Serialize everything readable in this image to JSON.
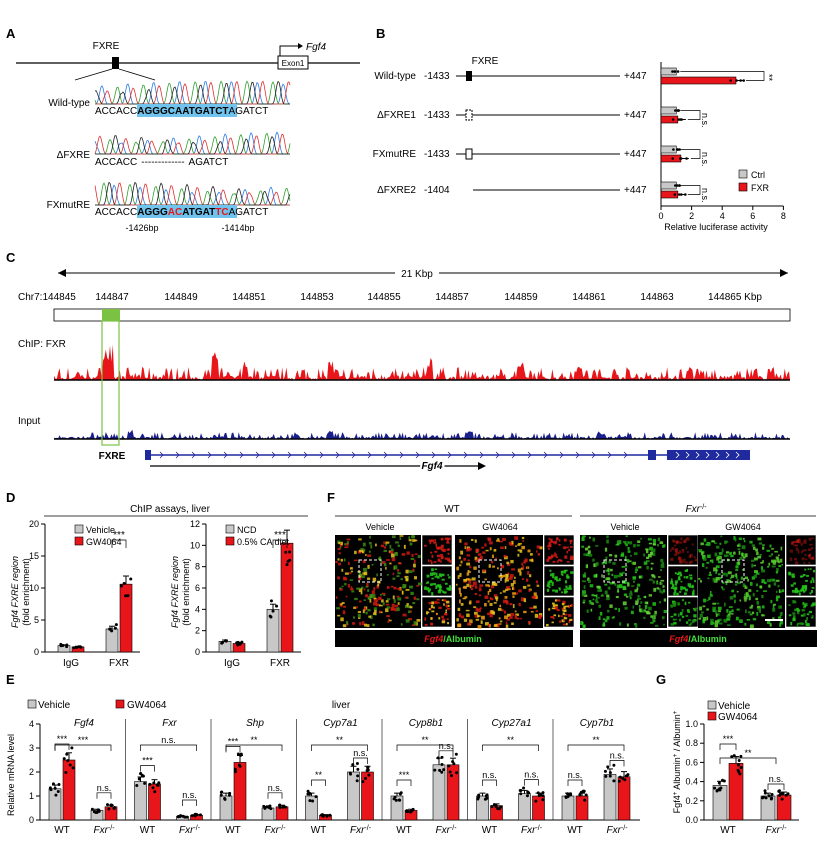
{
  "panel_letters": {
    "a": "A",
    "b": "B",
    "c": "C",
    "d": "D",
    "e": "E",
    "f": "F",
    "g": "G"
  },
  "colors": {
    "ctrl": "#c8c8c8",
    "treat": "#e8161b",
    "chip": "#e8161b",
    "input": "#1b1f8c",
    "gene": "#1f2a9e",
    "fxre_box": "#7cc242",
    "seq_hl": "#6fc3ec",
    "mut": "#e8161b"
  },
  "panel_a": {
    "fxre": "FXRE",
    "gene": "Fgf4",
    "exon": "Exon1",
    "rows": [
      {
        "label": "Wild-type",
        "seq": [
          "ACCACC",
          "AGGGCAATGATCT",
          "AGATCT"
        ]
      },
      {
        "label": "ΔFXRE",
        "seq": [
          "ACCACC",
          "-------------",
          "AGATCT"
        ]
      },
      {
        "label": "FXmutRE",
        "seq": [
          "ACCACC",
          "AGGG",
          "AC",
          "ATGAT",
          "TC",
          "AGATCT"
        ]
      }
    ],
    "pos_left": "-1426bp",
    "pos_right": "-1414bp"
  },
  "panel_b": {
    "fxre": "FXRE",
    "constructs": [
      {
        "label": "Wild-type",
        "start": "-1433",
        "end": "+447"
      },
      {
        "label": "ΔFXRE1",
        "start": "-1433",
        "end": "+447"
      },
      {
        "label": "FXmutRE",
        "start": "-1433",
        "end": "+447"
      },
      {
        "label": "ΔFXRE2",
        "start": "-1404",
        "end": "+447"
      }
    ],
    "sig": [
      "**",
      "n.s.",
      "n.s.",
      "n.s."
    ],
    "legend": [
      "Ctrl",
      "FXR"
    ],
    "xlabel": "Relative luciferase activity",
    "xticks": [
      "0",
      "2",
      "4",
      "6",
      "8"
    ]
  },
  "panel_c": {
    "scale": "21 Kbp",
    "chr": "Chr7:144845",
    "ticks": [
      "144847",
      "144849",
      "144851",
      "144853",
      "144855",
      "144857",
      "144859",
      "144861",
      "144863",
      "144865 Kbp"
    ],
    "chip_label": "ChIP: FXR",
    "input_label": "Input",
    "fxre": "FXRE",
    "gene": "Fgf4"
  },
  "panel_d": {
    "title": "ChIP assays, liver",
    "ylabel1": "Fgf4 FXRE region",
    "ylabel2": "(fold enrichment)",
    "left": {
      "legend": [
        "Vehicle",
        "GW4064"
      ],
      "yticks": [
        "0",
        "5",
        "10",
        "15",
        "20"
      ]
    },
    "right": {
      "legend": [
        "NCD",
        "0.5% CA diet"
      ],
      "yticks": [
        "0",
        "2",
        "4",
        "6",
        "8",
        "10",
        "12"
      ]
    },
    "groups": [
      "IgG",
      "FXR"
    ],
    "sig": "***"
  },
  "panel_e": {
    "legend": [
      "Vehicle",
      "GW4064"
    ],
    "tissue": "liver",
    "ylabel": "Relative mRNA level",
    "yticks": [
      "0",
      "1",
      "2",
      "3",
      "4"
    ],
    "genes": [
      "Fgf4",
      "Fxr",
      "Shp",
      "Cyp7a1",
      "Cyp8b1",
      "Cyp27a1",
      "Cyp7b1"
    ],
    "groups": [
      "WT",
      "Fxr-/-"
    ],
    "sig": [
      [
        "***",
        "***",
        "n.s."
      ],
      [
        "***",
        "n.s.",
        "n.s."
      ],
      [
        "***",
        "**",
        "n.s."
      ],
      [
        "**",
        "**",
        "n.s."
      ],
      [
        "***",
        "**",
        "n.s."
      ],
      [
        "n.s.",
        "**",
        "n.s."
      ],
      [
        "n.s.",
        "**",
        "n.s."
      ]
    ]
  },
  "panel_f": {
    "wt": "WT",
    "ko": "Fxr-/-",
    "cols": [
      "Vehicle",
      "GW4064",
      "Vehicle",
      "GW4064"
    ],
    "stain_a": "Fgf4",
    "stain_b": "/Albumin"
  },
  "panel_g": {
    "legend": [
      "Vehicle",
      "GW4064"
    ],
    "ylabel": "Fgf4+ Albumin+ / Albumin+",
    "yticks": [
      "0.0",
      "0.2",
      "0.4",
      "0.6",
      "0.8",
      "1.0"
    ],
    "groups": [
      "WT",
      "Fxr-/-"
    ],
    "sig": [
      "***",
      "**",
      "n.s."
    ]
  },
  "chart_data": [
    {
      "type": "bar",
      "name_ref": "panel_b",
      "categories": [
        "Wild-type",
        "ΔFXRE1",
        "FXmutRE",
        "ΔFXRE2"
      ],
      "series": [
        {
          "name": "Ctrl",
          "values": [
            1.0,
            1.0,
            1.0,
            1.0
          ]
        },
        {
          "name": "FXR",
          "values": [
            4.9,
            1.1,
            1.3,
            1.1
          ]
        }
      ],
      "xlabel": "Relative luciferase activity",
      "xlim": [
        0,
        8
      ]
    },
    {
      "type": "bar",
      "name_ref": "panel_d_left",
      "categories": [
        "IgG",
        "FXR"
      ],
      "series": [
        {
          "name": "Vehicle",
          "values": [
            1.0,
            3.6
          ]
        },
        {
          "name": "GW4064",
          "values": [
            0.8,
            10.6
          ]
        }
      ],
      "ylim": [
        0,
        20
      ]
    },
    {
      "type": "bar",
      "name_ref": "panel_d_right",
      "categories": [
        "IgG",
        "FXR"
      ],
      "series": [
        {
          "name": "NCD",
          "values": [
            1.0,
            4.0
          ]
        },
        {
          "name": "0.5% CA diet",
          "values": [
            0.8,
            10.2
          ]
        }
      ],
      "ylim": [
        0,
        12
      ]
    },
    {
      "type": "bar",
      "name_ref": "panel_e",
      "genes": [
        "Fgf4",
        "Fxr",
        "Shp",
        "Cyp7a1",
        "Cyp8b1",
        "Cyp27a1",
        "Cyp7b1"
      ],
      "series": [
        {
          "name": "Vehicle",
          "WT": [
            1.3,
            1.6,
            1.0,
            1.0,
            1.0,
            1.0,
            1.0
          ],
          "Fxr-/-": [
            0.4,
            0.15,
            0.5,
            2.0,
            2.3,
            1.1,
            1.9
          ]
        },
        {
          "name": "GW4064",
          "WT": [
            2.5,
            1.5,
            2.4,
            0.2,
            0.4,
            0.6,
            1.0
          ],
          "Fxr-/-": [
            0.55,
            0.2,
            0.55,
            2.0,
            2.3,
            1.0,
            1.8
          ]
        }
      ],
      "ylim": [
        0,
        4
      ]
    },
    {
      "type": "bar",
      "name_ref": "panel_g",
      "categories": [
        "WT",
        "Fxr-/-"
      ],
      "series": [
        {
          "name": "Vehicle",
          "values": [
            0.36,
            0.25
          ]
        },
        {
          "name": "GW4064",
          "values": [
            0.59,
            0.26
          ]
        }
      ],
      "ylim": [
        0,
        1.0
      ]
    }
  ]
}
